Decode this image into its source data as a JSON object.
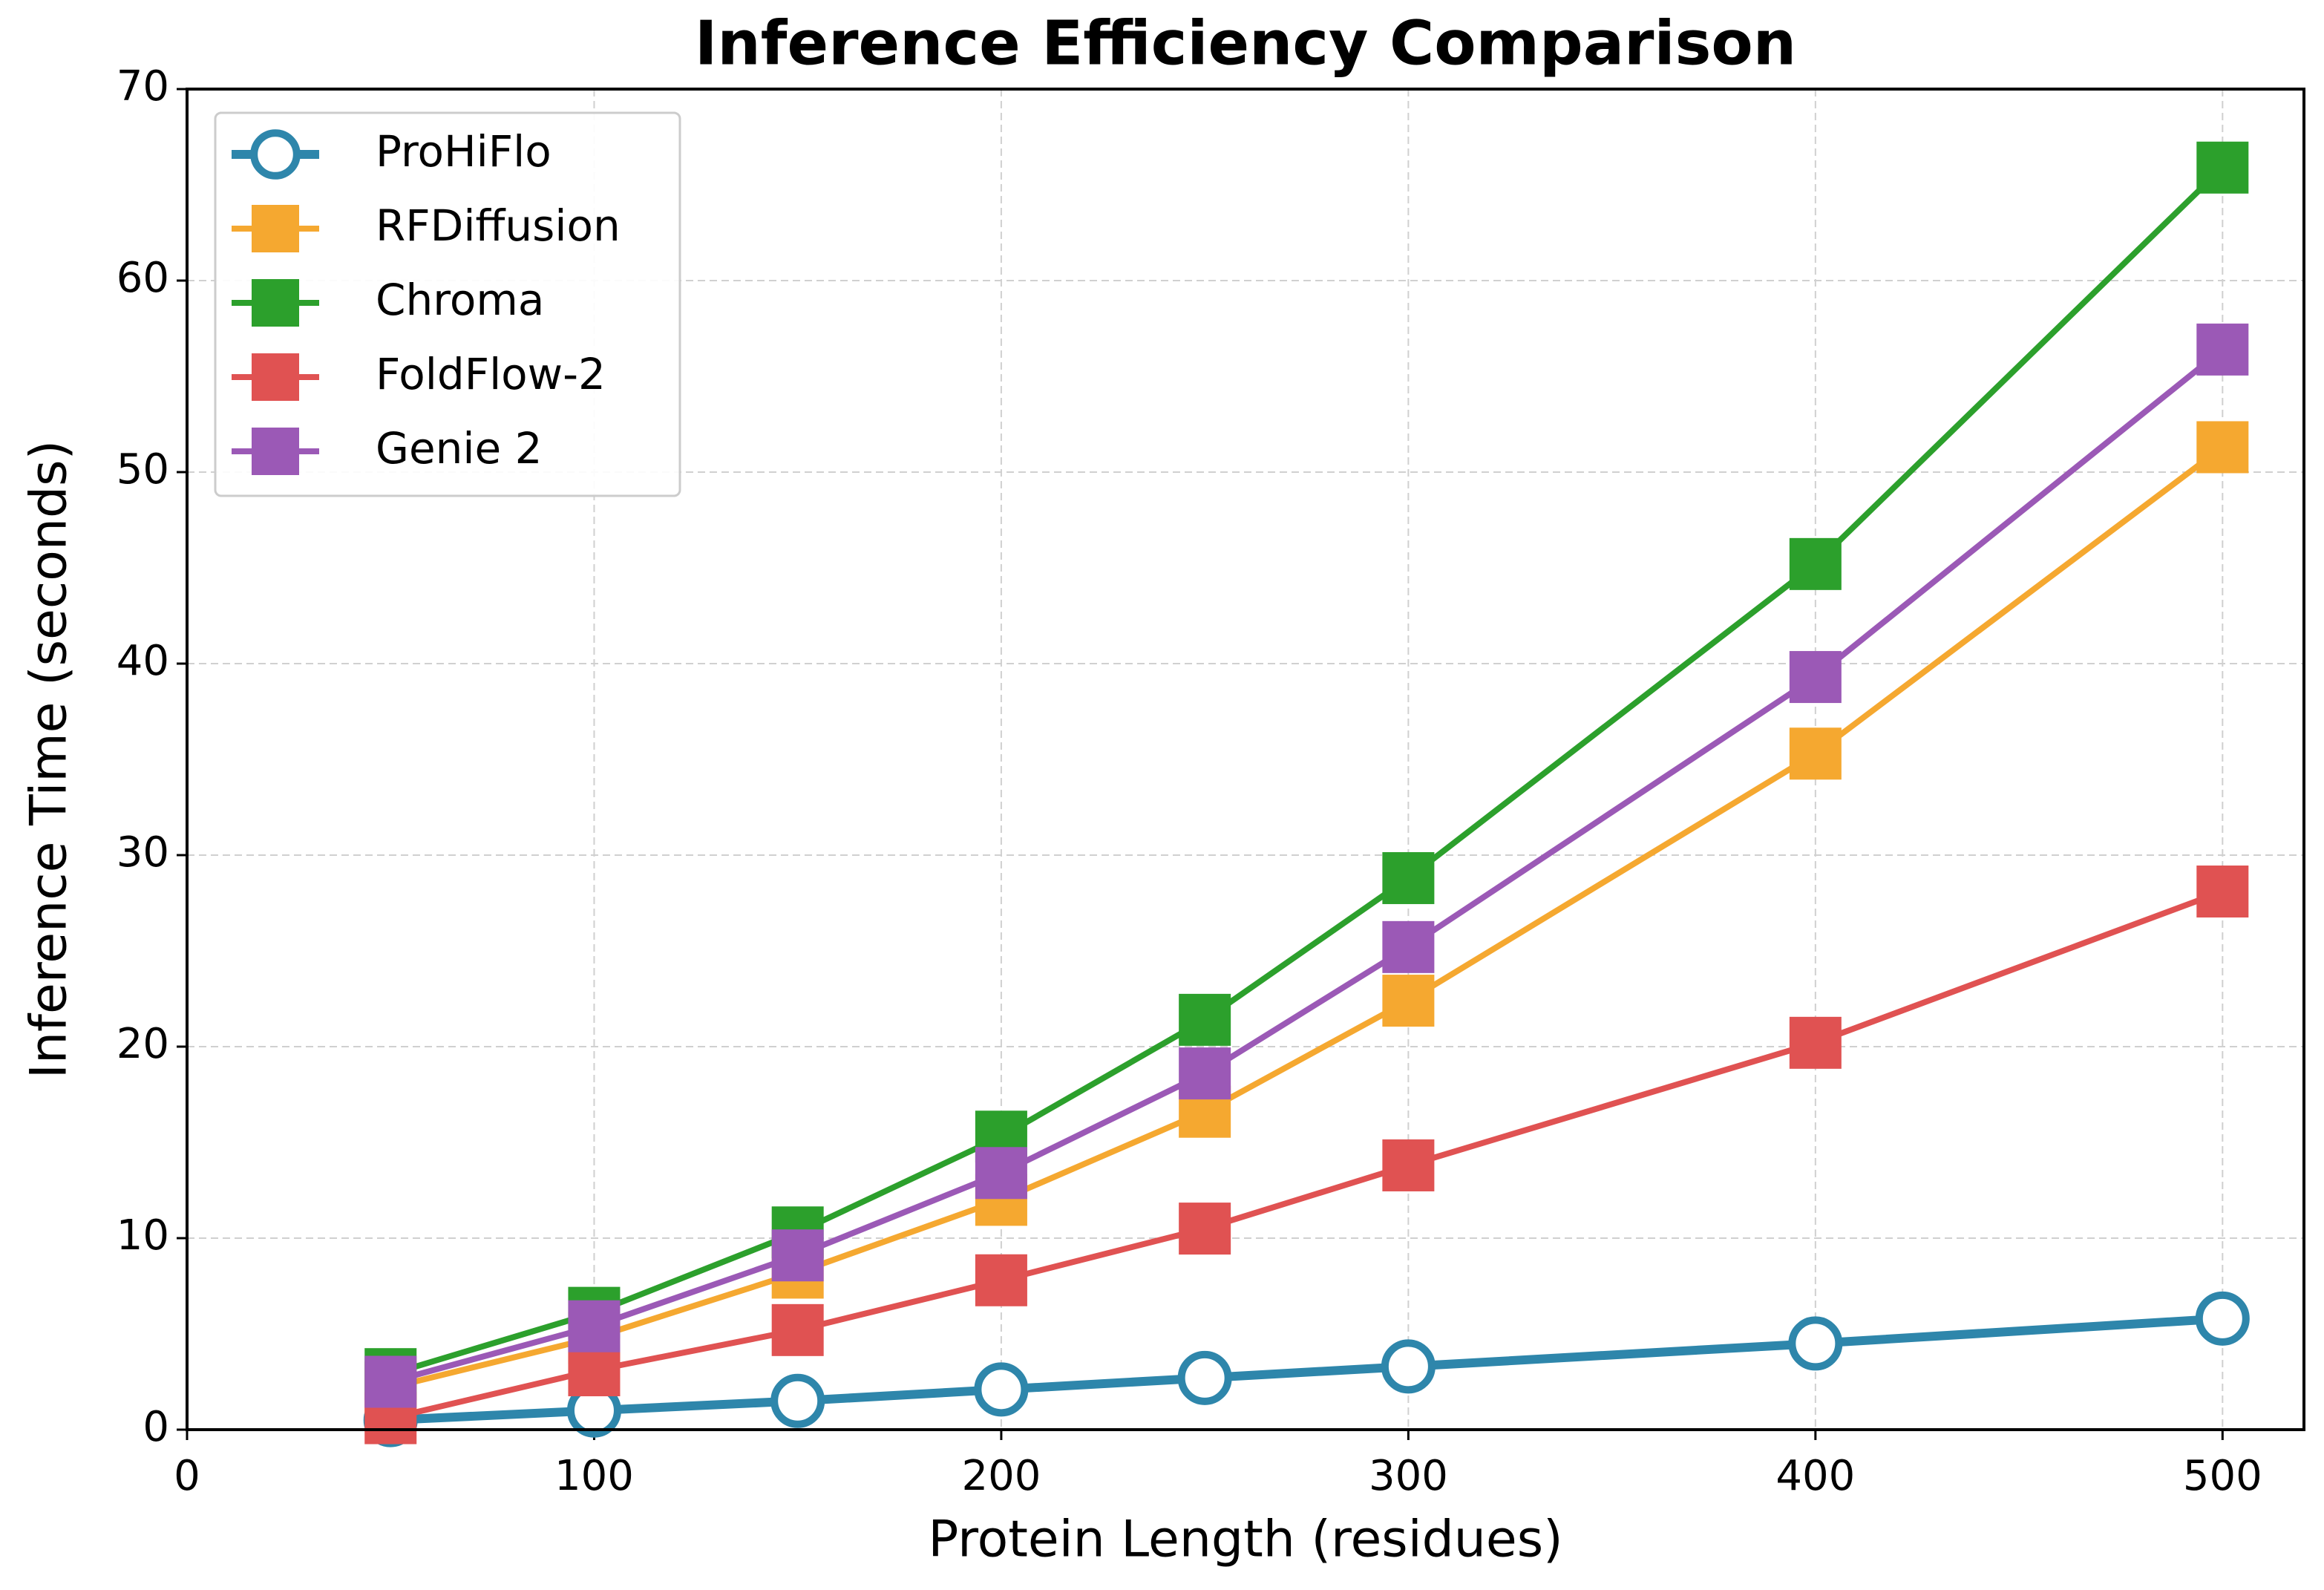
{
  "chart_data": {
    "type": "line",
    "title": "Inference Efficiency Comparison",
    "xlabel": "Protein Length (residues)",
    "ylabel": "Inference Time (seconds)",
    "x": [
      50,
      100,
      150,
      200,
      250,
      300,
      400,
      500
    ],
    "series": [
      {
        "name": "ProHiFlo",
        "color": "#2e86ab",
        "marker": "circle",
        "values": [
          0.5,
          1.0,
          1.5,
          2.1,
          2.7,
          3.3,
          4.5,
          5.8
        ]
      },
      {
        "name": "RFDiffusion",
        "color": "#f5a830",
        "marker": "square",
        "values": [
          2.2,
          4.8,
          8.2,
          12.0,
          16.6,
          22.4,
          35.3,
          51.3
        ]
      },
      {
        "name": "Chroma",
        "color": "#2ca02c",
        "marker": "square",
        "values": [
          2.9,
          6.1,
          10.3,
          15.3,
          21.4,
          28.8,
          45.2,
          65.9
        ]
      },
      {
        "name": "FoldFlow-2",
        "color": "#e05252",
        "marker": "square",
        "values": [
          0.6,
          3.1,
          5.2,
          7.8,
          10.5,
          13.8,
          20.2,
          28.1
        ]
      },
      {
        "name": "Genie 2",
        "color": "#9b59b6",
        "marker": "square",
        "values": [
          2.5,
          5.4,
          9.1,
          13.4,
          18.6,
          25.2,
          39.3,
          56.4
        ]
      }
    ],
    "xlim": [
      0,
      520
    ],
    "xticks": [
      0,
      100,
      200,
      300,
      400,
      500
    ],
    "ylim": [
      0,
      70
    ],
    "yticks": [
      0,
      10,
      20,
      30,
      40,
      50,
      60,
      70
    ],
    "grid": true,
    "legend": "upper left"
  }
}
